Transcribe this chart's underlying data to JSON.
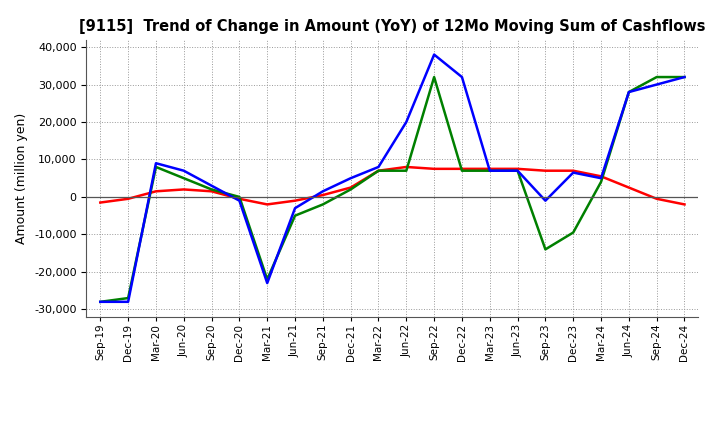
{
  "title": "[9115]  Trend of Change in Amount (YoY) of 12Mo Moving Sum of Cashflows",
  "ylabel": "Amount (million yen)",
  "background_color": "#ffffff",
  "grid_color": "#aaaaaa",
  "x_labels": [
    "Sep-19",
    "Dec-19",
    "Mar-20",
    "Jun-20",
    "Sep-20",
    "Dec-20",
    "Mar-21",
    "Jun-21",
    "Sep-21",
    "Dec-21",
    "Mar-22",
    "Jun-22",
    "Sep-22",
    "Dec-22",
    "Mar-23",
    "Jun-23",
    "Sep-23",
    "Dec-23",
    "Mar-24",
    "Jun-24",
    "Sep-24",
    "Dec-24"
  ],
  "operating": [
    -1500,
    -500,
    1500,
    2000,
    1500,
    -500,
    -2000,
    -1000,
    500,
    2500,
    7000,
    8000,
    7500,
    7500,
    7500,
    7500,
    7000,
    7000,
    5500,
    2500,
    -500,
    -2000
  ],
  "investing": [
    -28000,
    -27000,
    8000,
    5000,
    2000,
    0,
    -22000,
    -5000,
    -2000,
    2000,
    7000,
    7000,
    32000,
    7000,
    7000,
    7000,
    -14000,
    -9500,
    4000,
    28000,
    32000,
    32000
  ],
  "free": [
    -28000,
    -28000,
    9000,
    7000,
    3000,
    -1000,
    -23000,
    -3000,
    1500,
    5000,
    8000,
    20000,
    38000,
    32000,
    7000,
    7000,
    -1000,
    6500,
    5000,
    28000,
    30000,
    32000
  ],
  "ylim": [
    -32000,
    42000
  ],
  "yticks": [
    -30000,
    -20000,
    -10000,
    0,
    10000,
    20000,
    30000,
    40000
  ],
  "colors": {
    "operating": "#ff0000",
    "investing": "#008000",
    "free": "#0000ff"
  }
}
